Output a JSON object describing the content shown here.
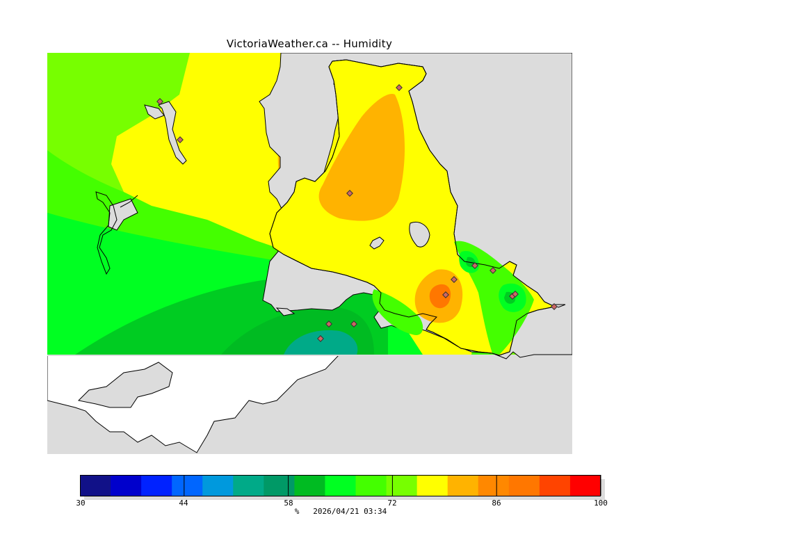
{
  "title": "VictoriaWeather.ca -- Humidity",
  "legend": {
    "unit": "%",
    "timestamp": "2026/04/21 03:34",
    "tick_labels": [
      "30",
      "44",
      "58",
      "72",
      "86",
      "100"
    ],
    "range": [
      30,
      100
    ],
    "colors": [
      "#111188",
      "#0000cc",
      "#0022ff",
      "#0066ff",
      "#0099dd",
      "#00aa88",
      "#009966",
      "#00bb22",
      "#00ff22",
      "#44ff00",
      "#77ff00",
      "#ffff00",
      "#ffb300",
      "#ff8800",
      "#ff7700",
      "#ff4400",
      "#ff0000"
    ]
  },
  "map": {
    "colors": {
      "water": "#dcdcdc",
      "land_outside": "#ffffff",
      "coast": "#000000",
      "station": "#cc6666"
    },
    "station_count": 18
  }
}
